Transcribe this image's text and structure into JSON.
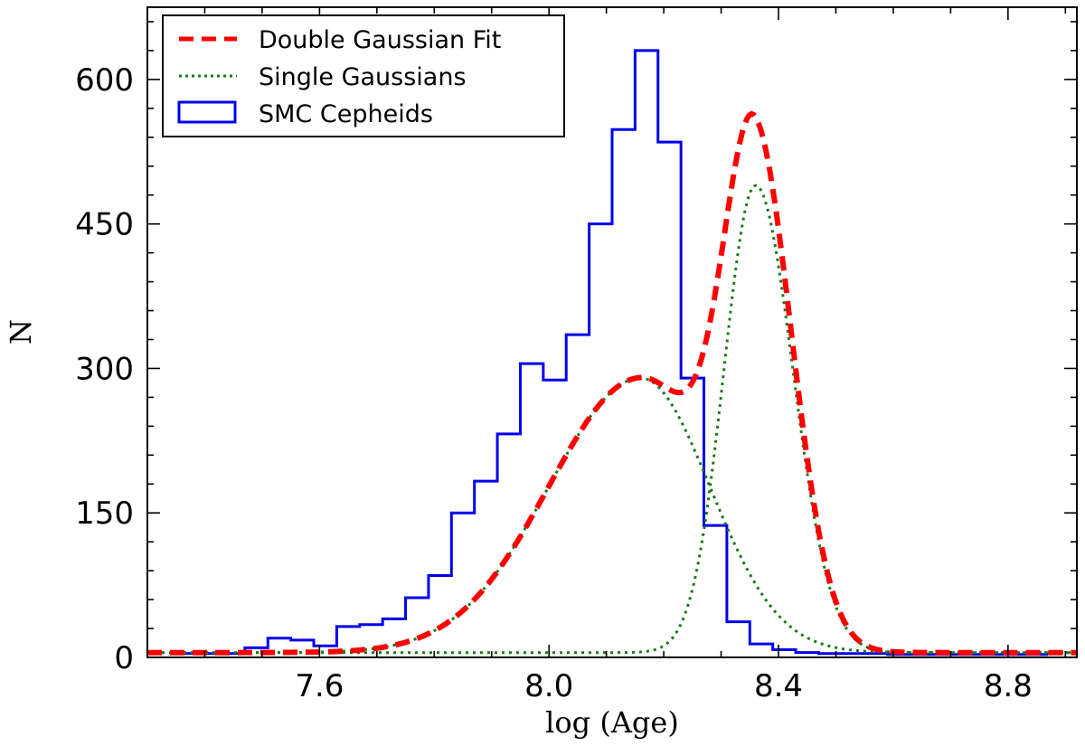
{
  "chart_data": {
    "type": "histogram",
    "xlabel": "log (Age)",
    "ylabel": "N",
    "xlim": [
      7.3,
      8.92
    ],
    "ylim": [
      0,
      675
    ],
    "xticks": [
      7.6,
      8.0,
      8.4,
      8.8
    ],
    "xtick_labels": [
      "7.6",
      "8.0",
      "8.4",
      "8.8"
    ],
    "yticks": [
      0,
      150,
      300,
      450,
      600
    ],
    "ytick_labels": [
      "0",
      "150",
      "300",
      "450",
      "600"
    ],
    "legend_position": "top-left",
    "legend": [
      {
        "label": "Double Gaussian Fit",
        "style": "dashed",
        "color": "#ff0000"
      },
      {
        "label": "Single Gaussians",
        "style": "dotted",
        "color": "#1a7a1a"
      },
      {
        "label": "SMC Cepheids",
        "style": "step",
        "color": "#0000ee"
      }
    ],
    "histogram": {
      "name": "SMC Cepheids",
      "color": "#0000ee",
      "bin_edges": [
        7.35,
        7.39,
        7.43,
        7.47,
        7.51,
        7.55,
        7.59,
        7.63,
        7.67,
        7.71,
        7.75,
        7.79,
        7.83,
        7.87,
        7.91,
        7.95,
        7.99,
        8.03,
        8.07,
        8.11,
        8.15,
        8.19,
        8.23,
        8.27,
        8.31,
        8.35,
        8.39,
        8.43,
        8.47,
        8.51,
        8.55,
        8.59,
        8.63,
        8.67,
        8.71,
        8.75,
        8.79,
        8.83,
        8.87
      ],
      "counts": [
        4,
        4,
        4,
        10,
        20,
        18,
        12,
        32,
        34,
        40,
        62,
        85,
        150,
        183,
        232,
        305,
        288,
        335,
        450,
        548,
        630,
        535,
        290,
        137,
        37,
        14,
        8,
        5,
        4,
        4,
        4,
        3,
        3,
        3,
        3,
        3,
        3,
        3
      ]
    },
    "double_gaussian_fit": {
      "name": "Double Gaussian Fit",
      "color": "#ff0000",
      "baseline": 5,
      "components": [
        {
          "amplitude": 285,
          "mean": 8.16,
          "sigma_left": 0.16,
          "sigma_right": 0.12
        },
        {
          "amplitude": 485,
          "mean": 8.36,
          "sigma_left": 0.055,
          "sigma_right": 0.065
        }
      ]
    },
    "single_gaussians": {
      "name": "Single Gaussians",
      "color": "#1a7a1a"
    }
  }
}
